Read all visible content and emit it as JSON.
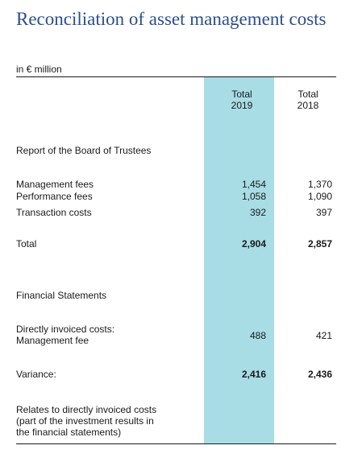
{
  "title": "Reconciliation of asset management costs",
  "unit": "in € million",
  "columns": [
    "Total 2019",
    "Total 2018"
  ],
  "columns_lines": [
    [
      "Total",
      "2019"
    ],
    [
      "Total",
      "2018"
    ]
  ],
  "sections": {
    "board_report": "Report of the Board of Trustees",
    "financial_statements": "Financial Statements"
  },
  "rows": {
    "management_fees": {
      "label": "Management fees",
      "v2019": "1,454",
      "v2018": "1,370"
    },
    "performance_fees": {
      "label": "Performance fees",
      "v2019": "1,058",
      "v2018": "1,090"
    },
    "transaction_costs": {
      "label": "Transaction costs",
      "v2019": "392",
      "v2018": "397"
    },
    "total": {
      "label": "Total",
      "v2019": "2,904",
      "v2018": "2,857"
    },
    "direct_costs": {
      "label_line1": "Directly invoiced costs:",
      "label_line2": "Management fee",
      "v2019": "488",
      "v2018": "421"
    },
    "variance": {
      "label": "Variance:",
      "v2019": "2,416",
      "v2018": "2,436"
    }
  },
  "footnote": {
    "line1": "Relates to directly invoiced costs",
    "line2": "(part of the investment results in",
    "line3": "the financial statements)"
  },
  "colors": {
    "title": "#2b4f8c",
    "highlight": "#a8dde6"
  }
}
